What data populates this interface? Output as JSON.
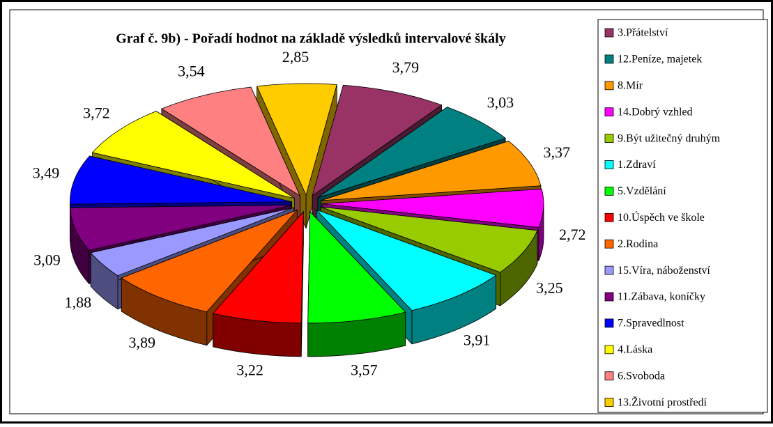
{
  "chart_data": {
    "type": "pie3d",
    "title": "Graf č. 9b) - Pořadí hodnot na základě výsledků intervalové škály",
    "categories": [
      "3.Přátelství",
      "12.Peníze, majetek",
      "8.Mír",
      "14.Dobrý vzhled",
      "9.Být užitečný druhým",
      "1.Zdraví",
      "5.Vzdělání",
      "10.Úspěch ve škole",
      "2.Rodina",
      "15.Víra, náboženství",
      "11.Zábava, koníčky",
      "7.Spravedlnost",
      "4.Láska",
      "6.Svoboda",
      "13.Životní prostředí"
    ],
    "values": [
      3.79,
      3.03,
      3.37,
      2.72,
      3.25,
      3.91,
      3.57,
      3.22,
      3.89,
      1.88,
      3.09,
      3.49,
      3.72,
      3.54,
      2.85
    ],
    "value_labels": [
      "3,79",
      "3,03",
      "3,37",
      "2,72",
      "3,25",
      "3,91",
      "3,57",
      "3,22",
      "3,89",
      "1,88",
      "3,09",
      "3,49",
      "3,72",
      "3,54",
      "2,85"
    ],
    "colors": [
      "#993366",
      "#008080",
      "#ff9900",
      "#ff00ff",
      "#99cc00",
      "#00ffff",
      "#00ff00",
      "#ff0000",
      "#ff6600",
      "#9999ff",
      "#800080",
      "#0000ff",
      "#ffff00",
      "#ff8080",
      "#ffcc00"
    ],
    "legend": "right"
  }
}
